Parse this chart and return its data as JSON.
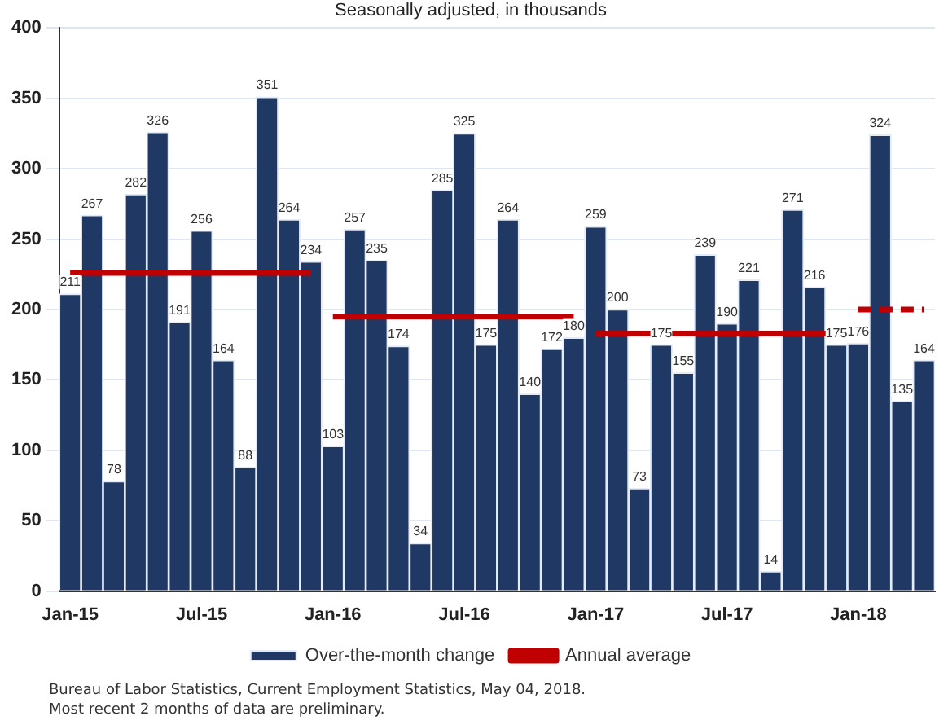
{
  "chart_data": {
    "type": "bar",
    "subtitle": "Seasonally adjusted, in thousands",
    "categories": [
      "Jan-15",
      null,
      null,
      null,
      null,
      null,
      "Jul-15",
      null,
      null,
      null,
      null,
      null,
      "Jan-16",
      null,
      null,
      null,
      null,
      null,
      "Jul-16",
      null,
      null,
      null,
      null,
      null,
      "Jan-17",
      null,
      null,
      null,
      null,
      null,
      "Jul-17",
      null,
      null,
      null,
      null,
      null,
      "Jan-18",
      null,
      null,
      null
    ],
    "series": [
      {
        "name": "Over-the-month change",
        "color": "#1f3864",
        "values": [
          211,
          267,
          78,
          282,
          326,
          191,
          256,
          164,
          88,
          351,
          264,
          234,
          103,
          257,
          235,
          174,
          34,
          285,
          325,
          175,
          264,
          140,
          172,
          180,
          259,
          200,
          73,
          175,
          155,
          239,
          190,
          221,
          14,
          271,
          216,
          175,
          176,
          324,
          135,
          164
        ],
        "value_labels": [
          "211",
          "267",
          "78",
          "282",
          "326",
          "191",
          "256",
          "164",
          "88",
          "351",
          "264",
          "234",
          "103",
          "257",
          "235",
          "174",
          "34",
          "285",
          "325",
          "175",
          "264",
          "140",
          "172",
          "180",
          "259",
          "200",
          "73",
          "175",
          "155",
          "239",
          "190",
          "221",
          "14",
          "271",
          "216",
          "175",
          "176",
          "324",
          "135",
          "164"
        ]
      },
      {
        "name": "Annual average",
        "type": "line",
        "color": "#c00000",
        "line_style": "solid",
        "values": [
          226,
          226,
          226,
          226,
          226,
          226,
          226,
          226,
          226,
          226,
          226,
          226,
          null,
          null,
          null,
          null,
          null,
          null,
          null,
          null,
          null,
          null,
          null,
          null,
          null,
          null,
          null,
          null,
          null,
          null,
          null,
          null,
          null,
          null,
          null,
          null,
          null,
          null,
          null,
          null
        ]
      },
      {
        "type": "line",
        "color": "#c00000",
        "line_style": "solid",
        "values": [
          null,
          null,
          null,
          null,
          null,
          null,
          null,
          null,
          null,
          null,
          null,
          null,
          195,
          195,
          195,
          195,
          195,
          195,
          195,
          195,
          195,
          195,
          195,
          195,
          null,
          null,
          null,
          null,
          null,
          null,
          null,
          null,
          null,
          null,
          null,
          null,
          null,
          null,
          null,
          null
        ]
      },
      {
        "type": "line",
        "color": "#c00000",
        "line_style": "solid",
        "values": [
          null,
          null,
          null,
          null,
          null,
          null,
          null,
          null,
          null,
          null,
          null,
          null,
          null,
          null,
          null,
          null,
          null,
          null,
          null,
          null,
          null,
          null,
          null,
          null,
          183,
          183,
          183,
          183,
          183,
          183,
          183,
          183,
          183,
          183,
          183,
          183,
          null,
          null,
          null,
          null
        ]
      },
      {
        "type": "line",
        "color": "#c00000",
        "line_style": "dashed",
        "values": [
          null,
          null,
          null,
          null,
          null,
          null,
          null,
          null,
          null,
          null,
          null,
          null,
          null,
          null,
          null,
          null,
          null,
          null,
          null,
          null,
          null,
          null,
          null,
          null,
          null,
          null,
          null,
          null,
          null,
          null,
          null,
          null,
          null,
          null,
          null,
          null,
          200,
          200,
          200,
          200
        ]
      }
    ],
    "ylim": [
      0,
      400
    ],
    "yticks": [
      0,
      50,
      100,
      150,
      200,
      250,
      300,
      350,
      400
    ],
    "grid": "y",
    "legend": "bottom",
    "marker": "none",
    "annotations": [
      "Bureau of Labor Statistics, Current Employment Statistics, May 04, 2018.",
      "Most recent 2 months of data are preliminary."
    ]
  }
}
